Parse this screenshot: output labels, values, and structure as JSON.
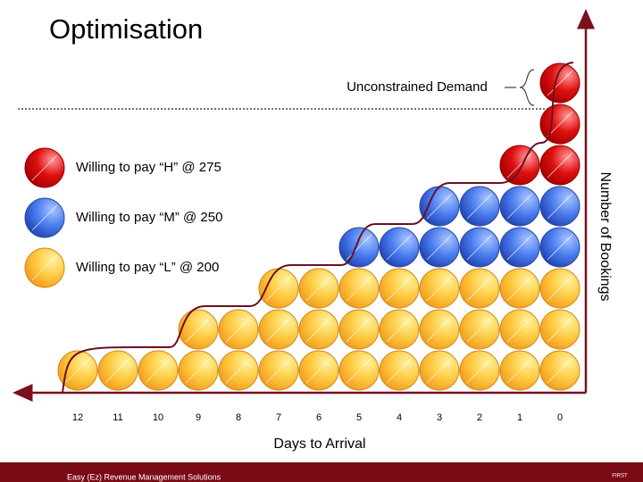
{
  "title": "Optimisation",
  "annotation": "Unconstrained Demand",
  "legend": [
    {
      "key": "H",
      "label": "Willing to pay “H” @ 275"
    },
    {
      "key": "M",
      "label": "Willing to pay “M” @ 250"
    },
    {
      "key": "L",
      "label": "Willing to pay “L” @ 200"
    }
  ],
  "axis": {
    "x_label": "Days to Arrival",
    "y_label": "Number of Bookings"
  },
  "columns": [
    {
      "label": "12",
      "L": 1,
      "M": 0,
      "H": 0
    },
    {
      "label": "11",
      "L": 1,
      "M": 0,
      "H": 0
    },
    {
      "label": "10",
      "L": 1,
      "M": 0,
      "H": 0
    },
    {
      "label": "9",
      "L": 2,
      "M": 0,
      "H": 0
    },
    {
      "label": "8",
      "L": 2,
      "M": 0,
      "H": 0
    },
    {
      "label": "7",
      "L": 3,
      "M": 0,
      "H": 0
    },
    {
      "label": "6",
      "L": 3,
      "M": 0,
      "H": 0
    },
    {
      "label": "5",
      "L": 3,
      "M": 1,
      "H": 0
    },
    {
      "label": "4",
      "L": 3,
      "M": 1,
      "H": 0
    },
    {
      "label": "3",
      "L": 3,
      "M": 2,
      "H": 0
    },
    {
      "label": "2",
      "L": 3,
      "M": 2,
      "H": 0
    },
    {
      "label": "1",
      "L": 3,
      "M": 2,
      "H": 1
    },
    {
      "label": "0",
      "L": 3,
      "M": 2,
      "H": 3
    }
  ],
  "footer": "Easy (Ez) Revenue Management Solutions",
  "logo": "FIRST"
}
